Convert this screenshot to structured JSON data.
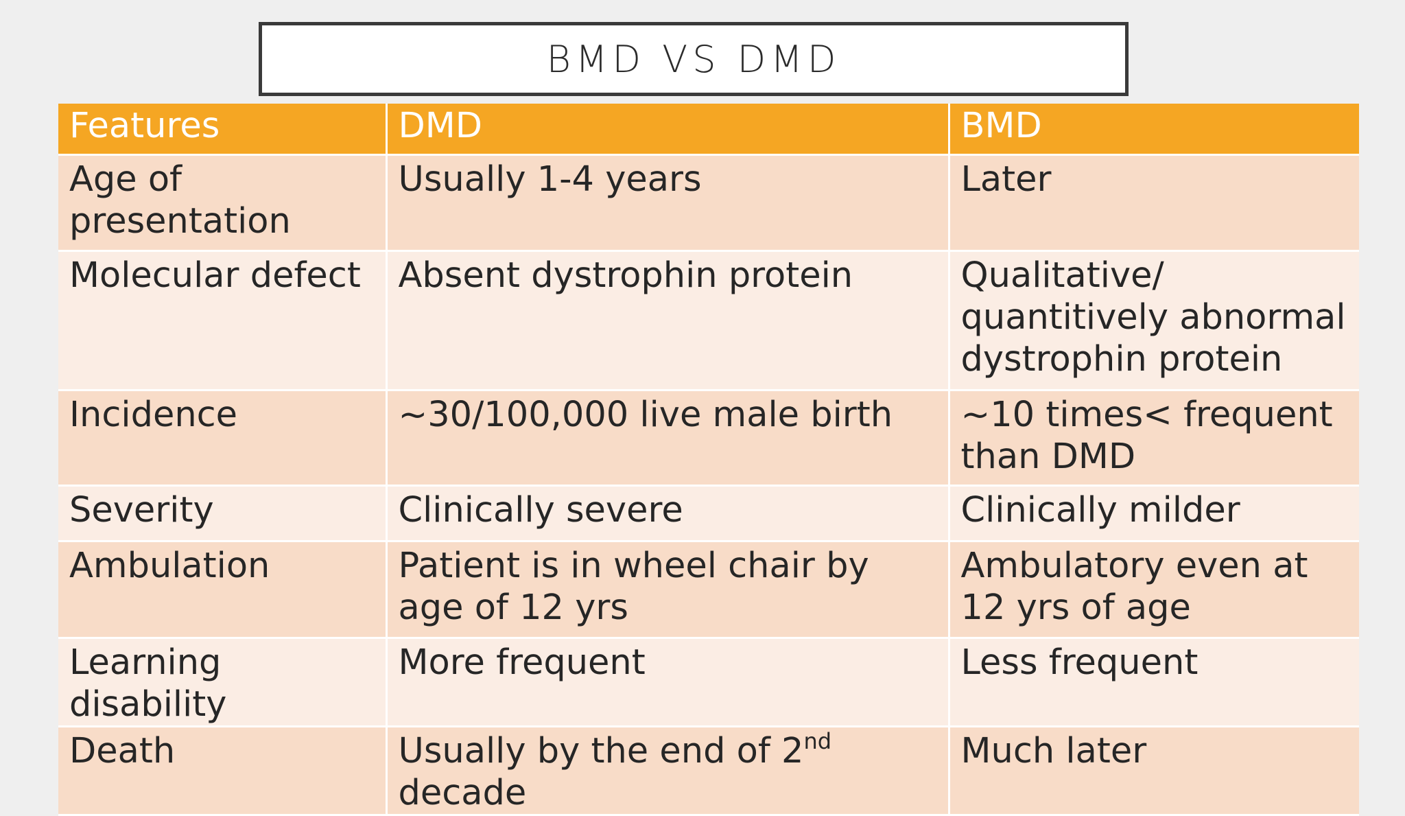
{
  "title": "BMD VS DMD",
  "table": {
    "headers": [
      "Features",
      "DMD",
      "BMD"
    ],
    "rows": [
      {
        "feature": "Age of presentation",
        "dmd": "Usually 1-4 years",
        "bmd": "Later"
      },
      {
        "feature": "Molecular defect",
        "dmd": "Absent dystrophin protein",
        "bmd": "Qualitative/ quantitively abnormal dystrophin protein"
      },
      {
        "feature": "Incidence",
        "dmd": "~30/100,000 live male birth",
        "bmd": "~10 times< frequent than DMD"
      },
      {
        "feature": "Severity",
        "dmd": "Clinically severe",
        "bmd": "Clinically milder"
      },
      {
        "feature": "Ambulation",
        "dmd": "Patient is in wheel chair by age of 12 yrs",
        "bmd": "Ambulatory even at 12 yrs of age"
      },
      {
        "feature": "Learning disability",
        "dmd": "More frequent",
        "bmd": "Less frequent"
      },
      {
        "feature": "Death",
        "dmd_prefix": "Usually by the end of 2",
        "dmd_sup": "nd",
        "dmd_suffix": " decade",
        "bmd": "Much later"
      }
    ]
  },
  "colors": {
    "header_bg": "#f5a623",
    "row_odd_bg": "#f8dcc8",
    "row_even_bg": "#fbede4",
    "slide_bg": "#efefef"
  }
}
